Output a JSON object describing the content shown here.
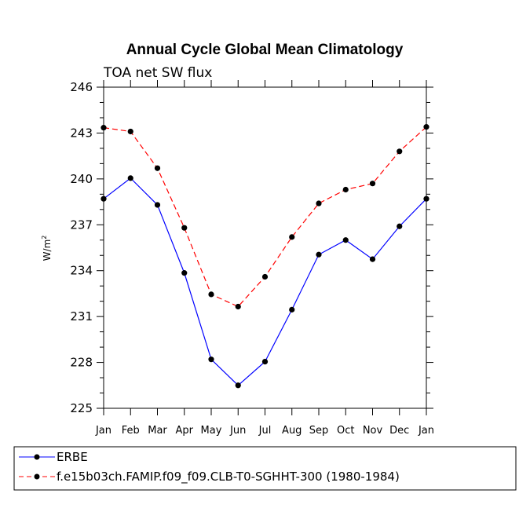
{
  "chart_data": {
    "type": "line",
    "title": "Annual Cycle Global Mean Climatology",
    "subtitle": "TOA net SW flux",
    "ylabel": "W/m",
    "ylabel_sup": "2",
    "xlabel": "",
    "categories": [
      "Jan",
      "Feb",
      "Mar",
      "Apr",
      "May",
      "Jun",
      "Jul",
      "Aug",
      "Sep",
      "Oct",
      "Nov",
      "Dec",
      "Jan"
    ],
    "ylim": [
      225,
      246
    ],
    "yticks": [
      "225",
      "228",
      "231",
      "234",
      "237",
      "240",
      "243",
      "246"
    ],
    "series": [
      {
        "name": "ERBE",
        "color": "#0000ff",
        "dash": "solid",
        "values": [
          238.7,
          240.05,
          238.3,
          233.85,
          228.2,
          226.5,
          228.05,
          231.45,
          235.05,
          236.0,
          234.75,
          236.9,
          238.7
        ]
      },
      {
        "name": "f.e15b03ch.FAMIP.f09_f09.CLB-T0-SGHHT-300 (1980-1984)",
        "color": "#ff0000",
        "dash": "dashed",
        "values": [
          243.35,
          243.1,
          240.7,
          236.8,
          232.45,
          231.65,
          233.6,
          236.2,
          238.4,
          239.3,
          239.7,
          241.8,
          243.4
        ]
      }
    ],
    "legend_position": "bottom-left"
  }
}
